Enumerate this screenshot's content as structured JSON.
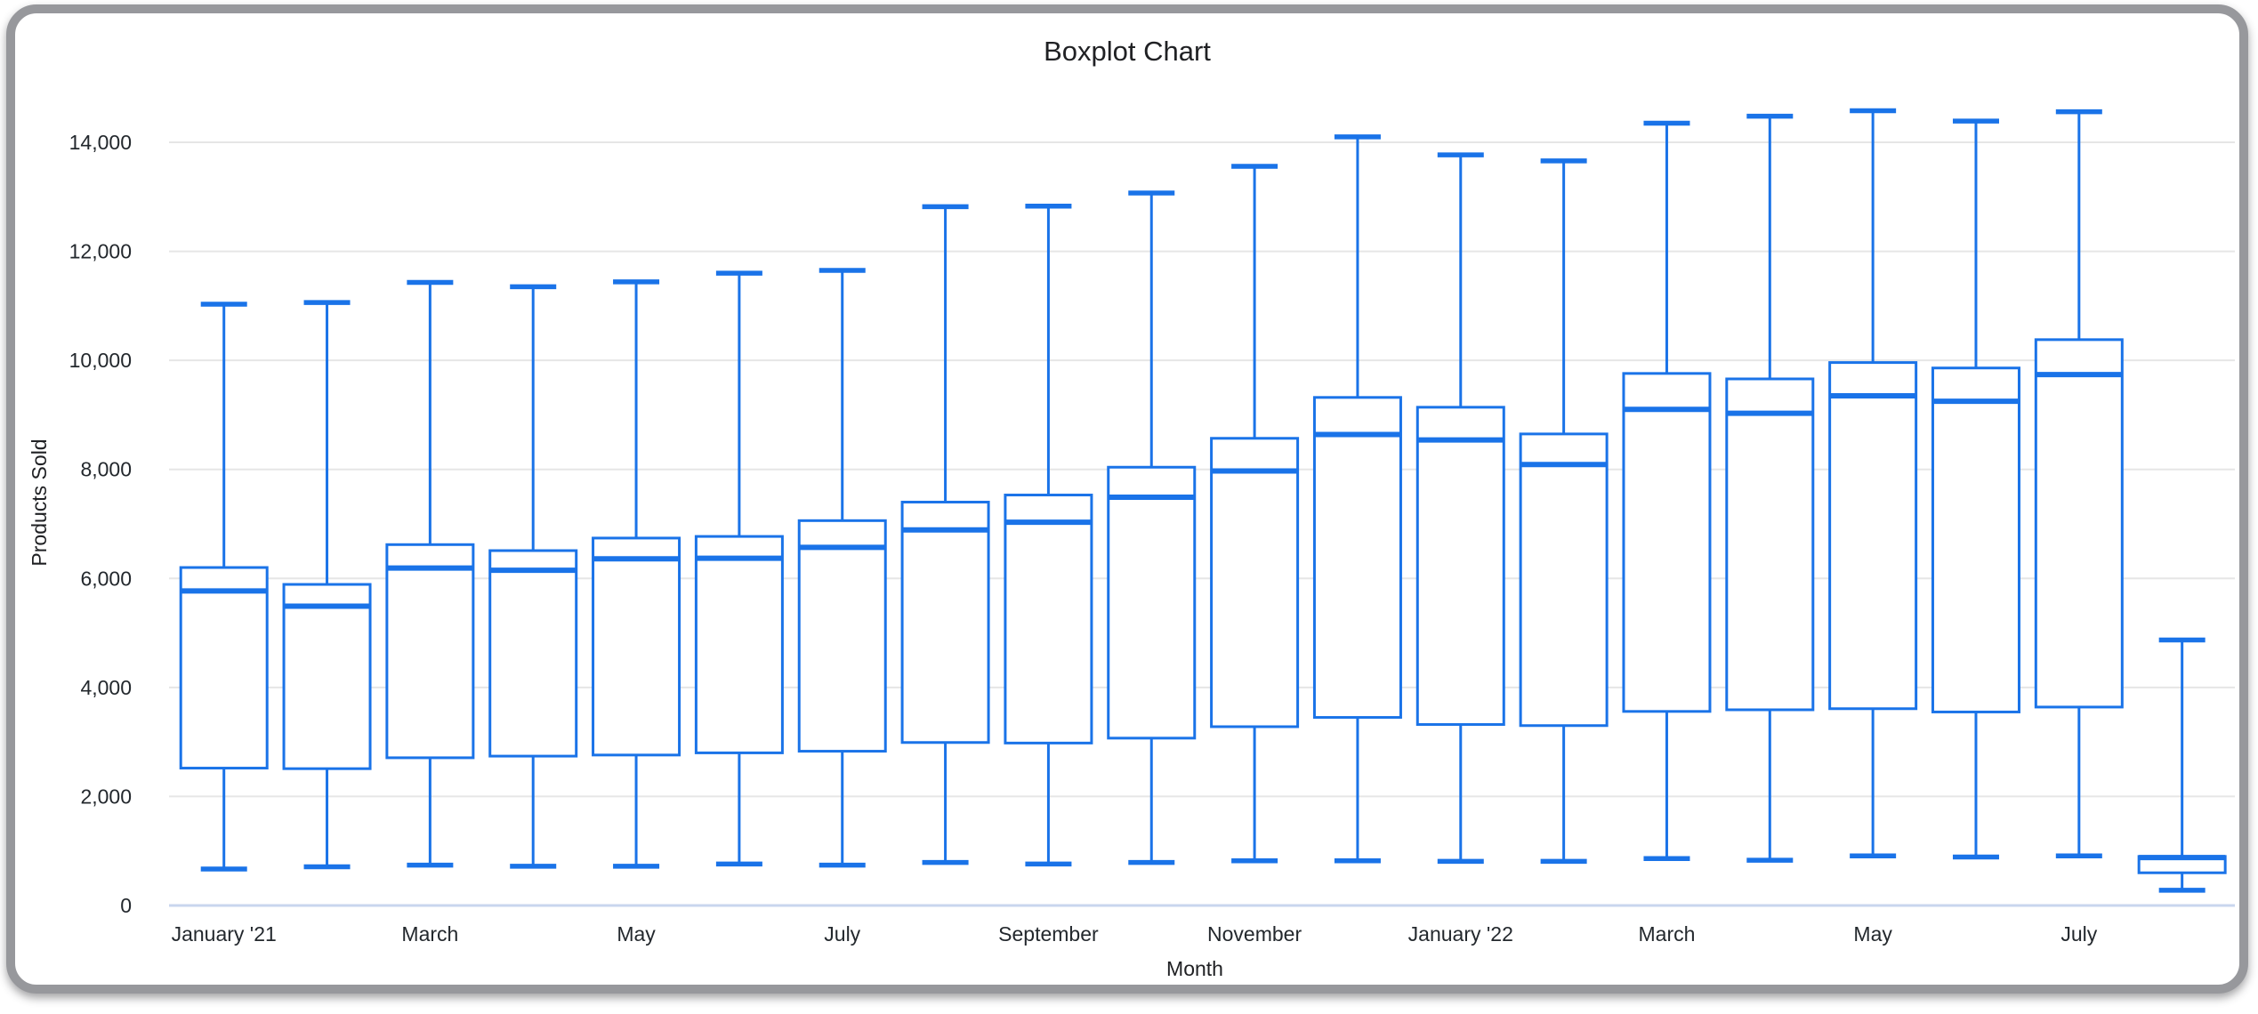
{
  "window": {
    "frame_color": "#97989c",
    "background_color": "#ffffff"
  },
  "colors": {
    "accent": "#1a73e8",
    "box_fill": "#ffffff",
    "gridline": "#e6e6e6",
    "baseline": "#c9d6ee",
    "title_text": "#202124",
    "tick_text": "#23282d"
  },
  "chart_data": {
    "type": "boxplot",
    "title": "Boxplot Chart",
    "xlabel": "Month",
    "ylabel": "Products Sold",
    "ylim": [
      0,
      14000
    ],
    "y_tick_step": 2000,
    "y_tick_labels": [
      "0",
      "2,000",
      "4,000",
      "6,000",
      "8,000",
      "10,000",
      "12,000",
      "14,000"
    ],
    "x_tick_labels": [
      "January '21",
      "March",
      "May",
      "July",
      "September",
      "November",
      "January '22",
      "March",
      "May",
      "July"
    ],
    "x_tick_shown_every": 2,
    "grid": "horizontal",
    "legend": "none",
    "categories": [
      "January '21",
      "February '21",
      "March '21",
      "April '21",
      "May '21",
      "June '21",
      "July '21",
      "August '21",
      "September '21",
      "October '21",
      "November '21",
      "December '21",
      "January '22",
      "February '22",
      "March '22",
      "April '22",
      "May '22",
      "June '22",
      "July '22",
      "August '22"
    ],
    "series": [
      {
        "month": "January '21",
        "min": 670,
        "q1": 2520,
        "median": 5770,
        "q3": 6200,
        "max": 11030
      },
      {
        "month": "February '21",
        "min": 710,
        "q1": 2510,
        "median": 5490,
        "q3": 5890,
        "max": 11060
      },
      {
        "month": "March '21",
        "min": 740,
        "q1": 2710,
        "median": 6190,
        "q3": 6620,
        "max": 11430
      },
      {
        "month": "April '21",
        "min": 720,
        "q1": 2740,
        "median": 6150,
        "q3": 6510,
        "max": 11350
      },
      {
        "month": "May '21",
        "min": 720,
        "q1": 2760,
        "median": 6360,
        "q3": 6740,
        "max": 11440
      },
      {
        "month": "June '21",
        "min": 760,
        "q1": 2800,
        "median": 6370,
        "q3": 6770,
        "max": 11600
      },
      {
        "month": "July '21",
        "min": 740,
        "q1": 2830,
        "median": 6570,
        "q3": 7060,
        "max": 11650
      },
      {
        "month": "August '21",
        "min": 790,
        "q1": 2990,
        "median": 6890,
        "q3": 7400,
        "max": 12820
      },
      {
        "month": "September '21",
        "min": 760,
        "q1": 2980,
        "median": 7030,
        "q3": 7530,
        "max": 12830
      },
      {
        "month": "October '21",
        "min": 790,
        "q1": 3070,
        "median": 7490,
        "q3": 8040,
        "max": 13070
      },
      {
        "month": "November '21",
        "min": 820,
        "q1": 3280,
        "median": 7970,
        "q3": 8570,
        "max": 13560
      },
      {
        "month": "December '21",
        "min": 820,
        "q1": 3450,
        "median": 8640,
        "q3": 9320,
        "max": 14100
      },
      {
        "month": "January '22",
        "min": 810,
        "q1": 3320,
        "median": 8540,
        "q3": 9140,
        "max": 13770
      },
      {
        "month": "February '22",
        "min": 810,
        "q1": 3300,
        "median": 8090,
        "q3": 8650,
        "max": 13660
      },
      {
        "month": "March '22",
        "min": 860,
        "q1": 3560,
        "median": 9100,
        "q3": 9760,
        "max": 14350
      },
      {
        "month": "April '22",
        "min": 830,
        "q1": 3590,
        "median": 9030,
        "q3": 9660,
        "max": 14480
      },
      {
        "month": "May '22",
        "min": 910,
        "q1": 3610,
        "median": 9350,
        "q3": 9960,
        "max": 14580
      },
      {
        "month": "June '22",
        "min": 890,
        "q1": 3550,
        "median": 9250,
        "q3": 9860,
        "max": 14390
      },
      {
        "month": "July '22",
        "min": 910,
        "q1": 3640,
        "median": 9740,
        "q3": 10380,
        "max": 14560
      },
      {
        "month": "August '22",
        "min": 280,
        "q1": 600,
        "median": 880,
        "q3": 900,
        "max": 4870
      }
    ]
  }
}
